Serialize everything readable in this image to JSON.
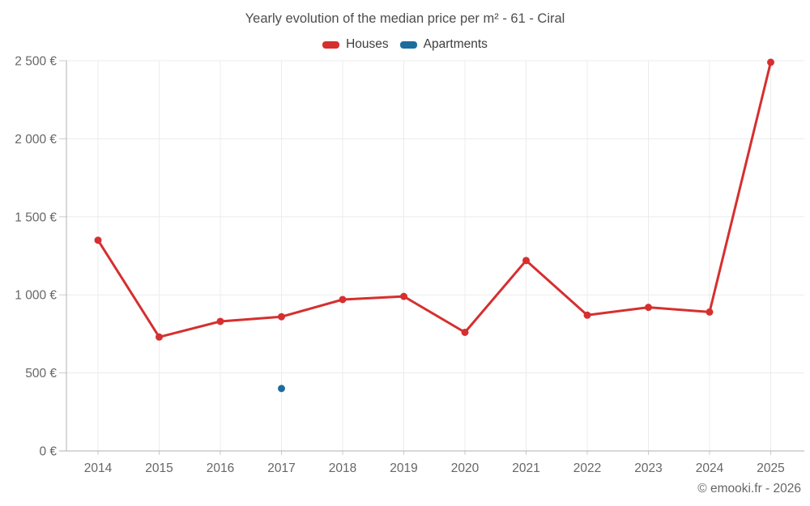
{
  "title": "Yearly evolution of the median price per m² - 61 - Ciral",
  "legend": [
    {
      "label": "Houses",
      "color": "#d62f2f"
    },
    {
      "label": "Apartments",
      "color": "#1b6d9e"
    }
  ],
  "footer": "© emooki.fr - 2026",
  "colors": {
    "houses": "#d62f2f",
    "apartments": "#1b6d9e",
    "gridline": "#ececec",
    "axis_line": "#b0b0b0",
    "tick": "#cccccc",
    "axis_label": "#666666",
    "title": "#4d4d4d"
  },
  "chart_data": {
    "type": "line",
    "title": "Yearly evolution of the median price per m² - 61 - Ciral",
    "x": [
      2014,
      2015,
      2016,
      2017,
      2018,
      2019,
      2020,
      2021,
      2022,
      2023,
      2024,
      2025
    ],
    "series": [
      {
        "name": "Houses",
        "color": "#d62f2f",
        "values": [
          1350,
          730,
          830,
          860,
          970,
          990,
          760,
          1220,
          870,
          920,
          890,
          2490
        ]
      },
      {
        "name": "Apartments",
        "color": "#1b6d9e",
        "values": [
          null,
          null,
          null,
          400,
          null,
          null,
          null,
          null,
          null,
          null,
          null,
          null
        ]
      }
    ],
    "xlabel": "",
    "ylabel": "",
    "ylim": [
      0,
      2500
    ],
    "ytick_step": 500,
    "ytick_labels": [
      "0 €",
      "500 €",
      "1 000 €",
      "1 500 €",
      "2 000 €",
      "2 500 €"
    ],
    "grid": true,
    "legend_position": "top"
  }
}
